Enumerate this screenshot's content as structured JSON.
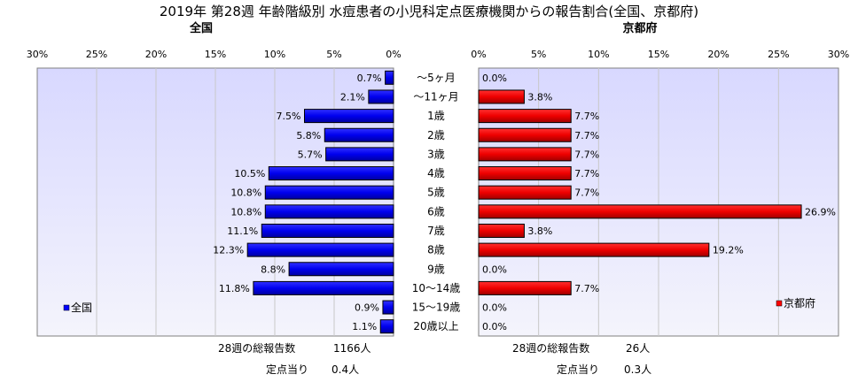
{
  "title": "2019年 第28週 年齢階級別 水痘患者の小児科定点医療機関からの報告割合(全国、京都府)",
  "colors": {
    "national": "#0000ff",
    "kyoto": "#ff0000",
    "plot_bg_top": "#d8d8ff",
    "plot_bg_bottom": "#f4f4fc",
    "grid": "#c8c8c8"
  },
  "chart_data": [
    {
      "type": "bar",
      "orientation": "horizontal",
      "title": "全国",
      "categories": [
        "〜5ヶ月",
        "〜11ヶ月",
        "1歳",
        "2歳",
        "3歳",
        "4歳",
        "5歳",
        "6歳",
        "7歳",
        "8歳",
        "9歳",
        "10〜14歳",
        "15〜19歳",
        "20歳以上"
      ],
      "series": [
        {
          "name": "全国",
          "values": [
            0.7,
            2.1,
            7.5,
            5.8,
            5.7,
            10.5,
            10.8,
            10.8,
            11.1,
            12.3,
            8.8,
            11.8,
            0.9,
            1.1
          ]
        }
      ],
      "data_labels": [
        "0.7%",
        "2.1%",
        "7.5%",
        "5.8%",
        "5.7%",
        "10.5%",
        "10.8%",
        "10.8%",
        "11.1%",
        "12.3%",
        "8.8%",
        "11.8%",
        "0.9%",
        "1.1%"
      ],
      "xlim": [
        0,
        30
      ],
      "x_reversed": true,
      "ticks": [
        "30%",
        "25%",
        "20%",
        "15%",
        "10%",
        "5%",
        "0%"
      ],
      "legend_placement": "bottom-left",
      "grid": true
    },
    {
      "type": "bar",
      "orientation": "horizontal",
      "title": "京都府",
      "categories": [
        "〜5ヶ月",
        "〜11ヶ月",
        "1歳",
        "2歳",
        "3歳",
        "4歳",
        "5歳",
        "6歳",
        "7歳",
        "8歳",
        "9歳",
        "10〜14歳",
        "15〜19歳",
        "20歳以上"
      ],
      "series": [
        {
          "name": "京都府",
          "values": [
            0.0,
            3.8,
            7.7,
            7.7,
            7.7,
            7.7,
            7.7,
            26.9,
            3.8,
            19.2,
            0.0,
            7.7,
            0.0,
            0.0
          ]
        }
      ],
      "data_labels": [
        "0.0%",
        "3.8%",
        "7.7%",
        "7.7%",
        "7.7%",
        "7.7%",
        "7.7%",
        "26.9%",
        "3.8%",
        "19.2%",
        "0.0%",
        "7.7%",
        "0.0%",
        "0.0%"
      ],
      "xlim": [
        0,
        30
      ],
      "ticks": [
        "0%",
        "5%",
        "10%",
        "15%",
        "20%",
        "25%",
        "30%"
      ],
      "legend_placement": "bottom-right",
      "grid": true
    }
  ],
  "footer": {
    "national": {
      "total_label": "28週の総報告数",
      "total_value": "1166人",
      "per_label": "定点当り",
      "per_value": "0.4人"
    },
    "kyoto": {
      "total_label": "28週の総報告数",
      "total_value": "26人",
      "per_label": "定点当り",
      "per_value": "0.3人"
    }
  }
}
